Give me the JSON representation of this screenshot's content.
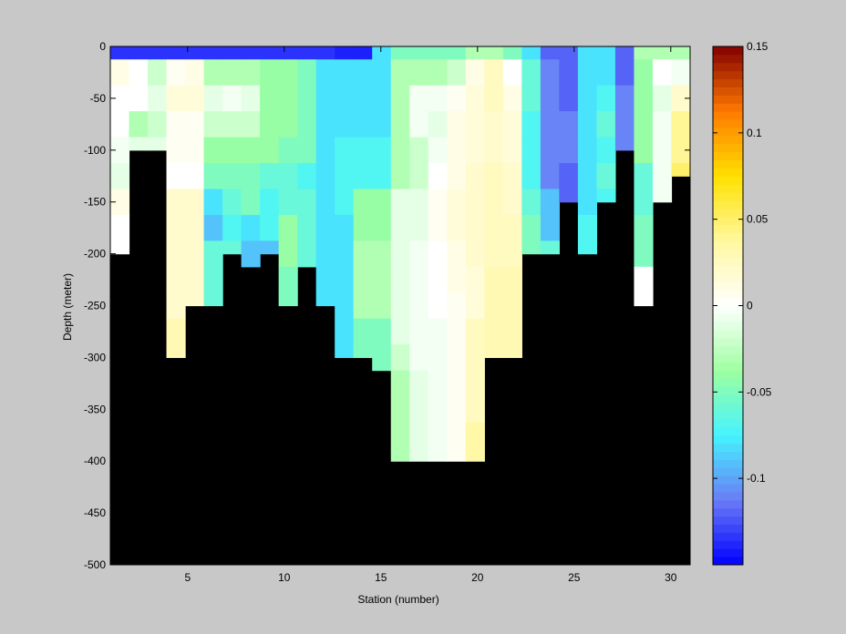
{
  "chart_data": {
    "type": "heatmap",
    "title": "",
    "xlabel": "Station (number)",
    "ylabel": "Depth (meter)",
    "xlim": [
      1,
      31
    ],
    "ylim": [
      -500,
      0
    ],
    "x_ticks": [
      5,
      10,
      15,
      20,
      25,
      30
    ],
    "y_ticks": [
      0,
      -50,
      -100,
      -150,
      -200,
      -250,
      -300,
      -350,
      -400,
      -450,
      -500
    ],
    "background_color": "#000000",
    "colorbar": {
      "limits": [
        -0.15,
        0.15
      ],
      "ticks": [
        0.15,
        0.1,
        0.05,
        0,
        -0.05,
        -0.1
      ],
      "colors": [
        "#0000ff",
        "#6a7cf5",
        "#45f3ff",
        "#9effa0",
        "#ffffff",
        "#fff8a0",
        "#ffe000",
        "#ff7a00",
        "#820000"
      ]
    },
    "station_bottom_depth": [
      -200,
      -100,
      -100,
      -300,
      -250,
      -250,
      -200,
      -250,
      -200,
      -250,
      -250,
      -250,
      -300,
      -300,
      -400,
      -400,
      -400,
      -400,
      -400,
      -400,
      -300,
      -300,
      -200,
      -200,
      -150,
      -200,
      -150,
      -100,
      -250,
      -150,
      -125
    ],
    "surface_row": [
      -0.135,
      -0.135,
      -0.135,
      -0.135,
      -0.135,
      -0.135,
      -0.135,
      -0.135,
      -0.135,
      -0.135,
      -0.135,
      -0.135,
      -0.14,
      -0.14,
      -0.08,
      -0.05,
      -0.05,
      -0.05,
      -0.05,
      -0.03,
      -0.03,
      -0.05,
      -0.08,
      -0.12,
      -0.12,
      -0.08,
      -0.08,
      -0.12,
      -0.03,
      -0.03,
      -0.03
    ],
    "station_profiles": [
      [
        0.01,
        0.0,
        0.0,
        -0.005,
        -0.01,
        0.01,
        0.0,
        0.0
      ],
      [
        0.0,
        0.0,
        -0.03,
        -0.01
      ],
      [
        -0.02,
        -0.01,
        -0.02,
        -0.01
      ],
      [
        0.005,
        0.015,
        0.005,
        0.005,
        0.0,
        0.02,
        0.02,
        0.02,
        0.02,
        0.02,
        0.03,
        0.03
      ],
      [
        0.01,
        0.015,
        0.005,
        0.005,
        0.0,
        0.02,
        0.02,
        0.02,
        0.02,
        0.02,
        0.03,
        0.03
      ],
      [
        -0.03,
        -0.01,
        -0.02,
        -0.04,
        -0.05,
        -0.08,
        -0.09,
        -0.06,
        -0.06,
        -0.06
      ],
      [
        -0.03,
        -0.005,
        -0.02,
        -0.04,
        -0.05,
        -0.06,
        -0.07,
        -0.06,
        -0.06,
        -0.06
      ],
      [
        -0.03,
        -0.01,
        -0.02,
        -0.04,
        -0.05,
        -0.05,
        -0.08,
        -0.09
      ],
      [
        -0.04,
        -0.04,
        -0.04,
        -0.04,
        -0.06,
        -0.07,
        -0.07,
        -0.09
      ],
      [
        -0.04,
        -0.04,
        -0.04,
        -0.05,
        -0.06,
        -0.06,
        -0.04,
        -0.04,
        -0.05,
        -0.05
      ],
      [
        -0.05,
        -0.05,
        -0.05,
        -0.05,
        -0.07,
        -0.06,
        -0.06,
        -0.06
      ],
      [
        -0.08,
        -0.08,
        -0.08,
        -0.08,
        -0.08,
        -0.08,
        -0.08,
        -0.08,
        -0.08,
        -0.08
      ],
      [
        -0.08,
        -0.08,
        -0.08,
        -0.07,
        -0.07,
        -0.07,
        -0.08,
        -0.08,
        -0.08,
        -0.08,
        -0.08,
        -0.08
      ],
      [
        -0.08,
        -0.08,
        -0.08,
        -0.07,
        -0.07,
        -0.04,
        -0.04,
        -0.03,
        -0.03,
        -0.03,
        -0.05,
        -0.05
      ],
      [
        -0.08,
        -0.08,
        -0.08,
        -0.07,
        -0.07,
        -0.04,
        -0.04,
        -0.03,
        -0.03,
        -0.03,
        -0.05,
        -0.05
      ],
      [
        -0.03,
        -0.03,
        -0.03,
        -0.03,
        -0.03,
        -0.01,
        -0.01,
        -0.01,
        -0.01,
        -0.01,
        -0.01,
        -0.02,
        -0.03,
        -0.03,
        -0.03,
        -0.03,
        -0.03,
        -0.03,
        -0.03,
        -0.03
      ],
      [
        -0.03,
        -0.005,
        -0.005,
        -0.02,
        -0.02,
        -0.01,
        -0.01,
        -0.005,
        -0.005,
        -0.005,
        -0.005,
        -0.005,
        -0.01,
        -0.01,
        -0.01,
        -0.01,
        -0.01,
        -0.01,
        -0.01,
        -0.01
      ],
      [
        -0.03,
        -0.005,
        -0.01,
        -0.005,
        0.0,
        0.005,
        0.005,
        0.0,
        0.0,
        0.0,
        -0.005,
        -0.005,
        -0.005,
        -0.005,
        -0.005,
        -0.005,
        -0.005,
        -0.005,
        -0.005,
        -0.005
      ],
      [
        -0.02,
        0.005,
        0.01,
        0.01,
        0.01,
        0.015,
        0.015,
        0.01,
        0.01,
        0.005,
        0.005,
        0.005,
        0.005,
        0.005,
        0.005,
        0.005,
        0.035,
        0.035,
        0.035,
        0.035
      ],
      [
        0.01,
        0.015,
        0.015,
        0.015,
        0.02,
        0.02,
        0.02,
        0.02,
        0.015,
        0.015,
        0.025,
        0.025,
        0.025,
        0.025,
        0.035,
        0.035,
        0.035,
        0.035,
        0.035,
        0.035
      ],
      [
        0.025,
        0.025,
        0.02,
        0.02,
        0.025,
        0.025,
        0.025,
        0.025,
        0.03,
        0.03,
        0.03,
        0.03,
        0.035,
        0.035,
        0.035,
        0.035,
        0.04,
        0.04,
        0.04,
        0.04
      ],
      [
        0.0,
        0.01,
        0.015,
        0.015,
        0.02,
        0.02,
        0.025,
        0.025,
        0.03,
        0.03,
        0.03,
        0.03
      ],
      [
        -0.06,
        -0.06,
        -0.07,
        -0.07,
        -0.07,
        -0.06,
        -0.05,
        -0.05,
        -0.04,
        -0.04,
        -0.01,
        -0.01
      ],
      [
        -0.11,
        -0.11,
        -0.11,
        -0.11,
        -0.11,
        -0.09,
        -0.09,
        -0.06,
        -0.06,
        -0.06
      ],
      [
        -0.12,
        -0.12,
        -0.11,
        -0.11,
        -0.12,
        -0.12,
        -0.15,
        -0.15,
        -0.13,
        -0.13
      ],
      [
        -0.08,
        -0.08,
        -0.08,
        -0.08,
        -0.08,
        -0.08,
        -0.07,
        -0.07,
        -0.08,
        -0.08
      ],
      [
        -0.08,
        -0.07,
        -0.06,
        -0.07,
        -0.06,
        -0.07,
        -0.08,
        -0.01,
        -0.01,
        -0.01
      ],
      [
        -0.12,
        -0.11,
        -0.11,
        -0.11,
        -0.11,
        -0.11
      ],
      [
        -0.04,
        -0.04,
        -0.04,
        -0.04,
        -0.06,
        -0.06,
        -0.05,
        -0.05,
        0.0,
        0.0,
        0.06,
        0.06
      ],
      [
        0.0,
        -0.01,
        -0.005,
        -0.005,
        -0.005,
        -0.005,
        -0.005,
        -0.005,
        0.0
      ],
      [
        -0.005,
        0.02,
        0.04,
        0.04,
        0.05,
        0.06,
        0.06,
        0.06,
        0.05
      ]
    ]
  }
}
